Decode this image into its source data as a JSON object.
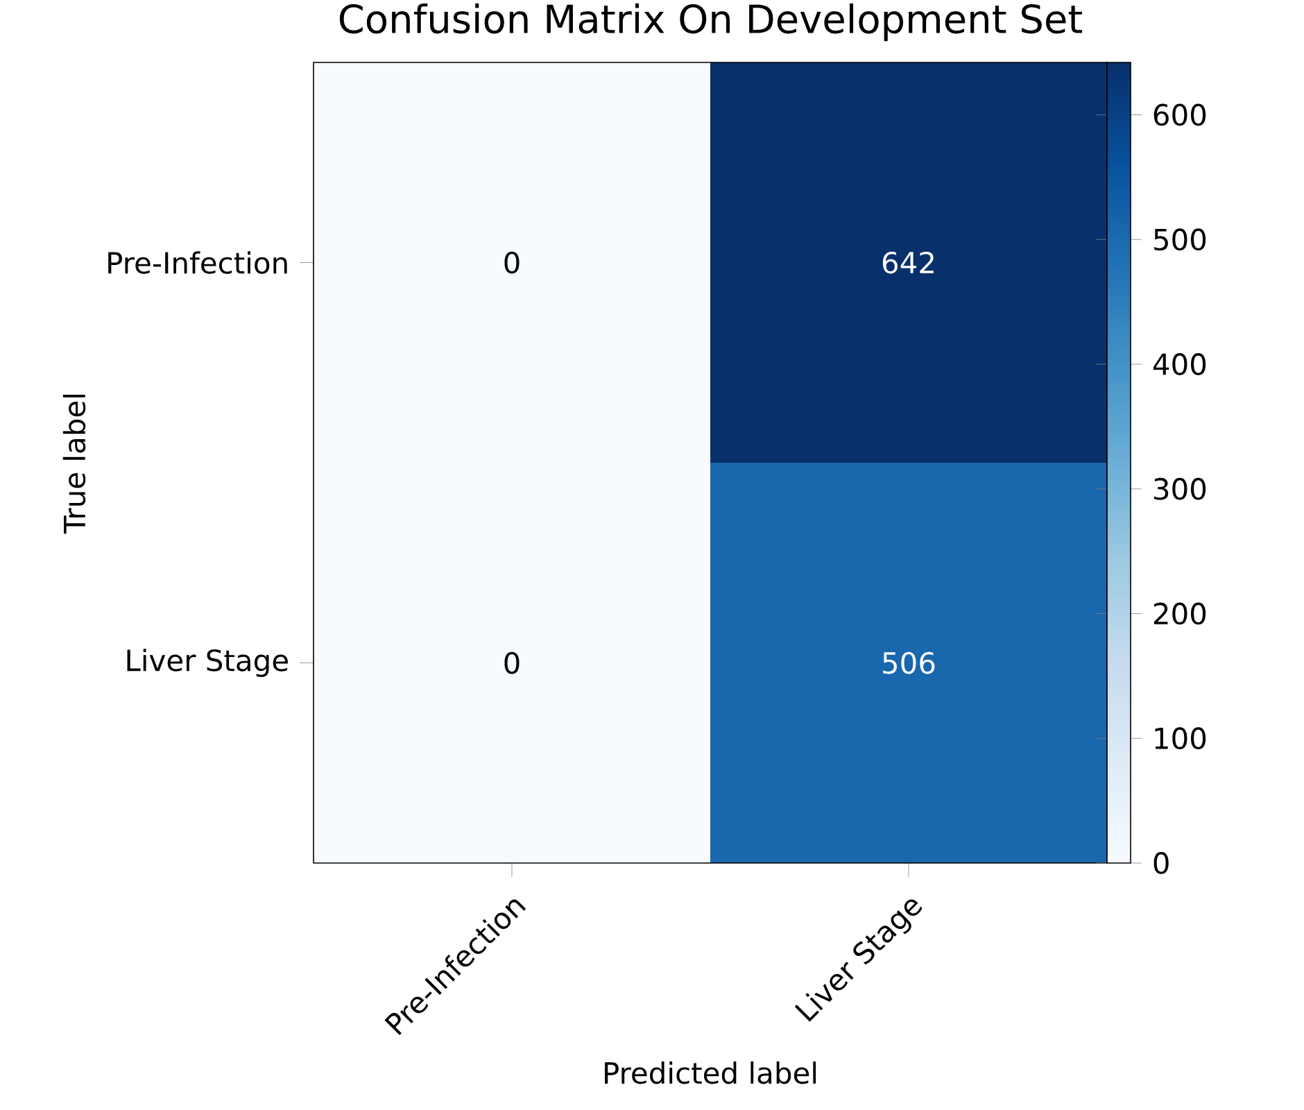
{
  "chart_data": {
    "type": "heatmap",
    "title": "Confusion Matrix On Development Set",
    "xlabel": "Predicted label",
    "ylabel": "True label",
    "categories": [
      "Pre-Infection",
      "Liver Stage"
    ],
    "y_categories": [
      "Pre-Infection",
      "Liver Stage"
    ],
    "cells": [
      [
        0,
        642
      ],
      [
        0,
        506
      ]
    ],
    "data_labels": true,
    "clim": [
      0,
      642
    ],
    "cticks": [
      0,
      100,
      200,
      300,
      400,
      500,
      600
    ]
  }
}
